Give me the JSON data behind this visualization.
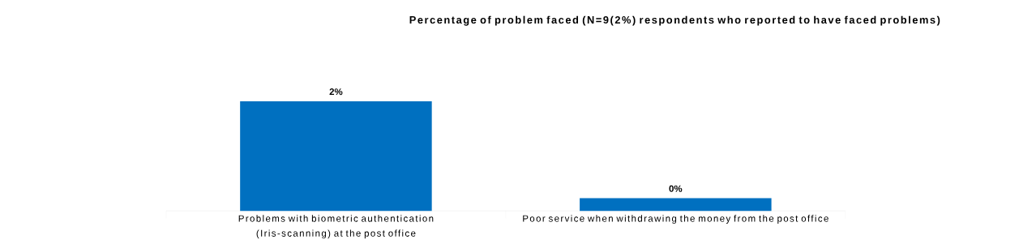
{
  "chart_data": {
    "type": "bar",
    "title": "Percentage of problem faced (N=9(2%) respondents who reported to have faced problems)",
    "categories": [
      "Problems with biometric authentication (Iris-scanning) at the post office",
      "Poor service when withdrawing the money from the post office"
    ],
    "values": [
      2,
      0.23
    ],
    "value_labels": [
      "2%",
      "0%"
    ],
    "color": "#0070c0"
  }
}
